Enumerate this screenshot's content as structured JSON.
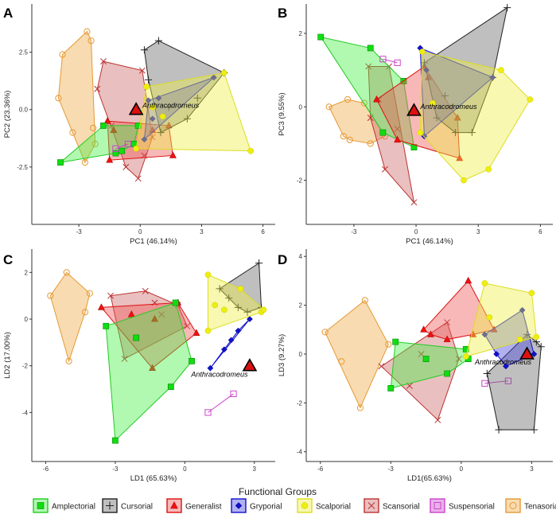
{
  "legend": {
    "title": "Functional Groups",
    "items": [
      {
        "key": "amplectorial",
        "label": "Amplectorial"
      },
      {
        "key": "cursorial",
        "label": "Cursorial"
      },
      {
        "key": "generalist",
        "label": "Generalist"
      },
      {
        "key": "gryporial",
        "label": "Gryporial"
      },
      {
        "key": "scalporial",
        "label": "Scalporial"
      },
      {
        "key": "scansorial",
        "label": "Scansorial"
      },
      {
        "key": "suspensorial",
        "label": "Suspensorial"
      },
      {
        "key": "tenasorial",
        "label": "Tenasorial"
      }
    ]
  },
  "groups": {
    "amplectorial": {
      "stroke": "#22cc22",
      "fill": "#44ee44",
      "marker": "square",
      "marker_fill": "#11dd11"
    },
    "cursorial": {
      "stroke": "#222222",
      "fill": "#666666",
      "marker": "plus",
      "marker_fill": "none"
    },
    "generalist": {
      "stroke": "#dd1111",
      "fill": "#ee5555",
      "marker": "triangle",
      "marker_fill": "#ee1111"
    },
    "gryporial": {
      "stroke": "#1111cc",
      "fill": "#4444dd",
      "marker": "diamond",
      "marker_fill": "#1111cc"
    },
    "scalporial": {
      "stroke": "#dddd22",
      "fill": "#eeee44",
      "marker": "circle",
      "marker_fill": "#eeee11"
    },
    "scansorial": {
      "stroke": "#bb3333",
      "fill": "#cc6666",
      "marker": "cross",
      "marker_fill": "none"
    },
    "suspensorial": {
      "stroke": "#cc44cc",
      "fill": "#cc44cc",
      "marker": "opensquare",
      "marker_fill": "none"
    },
    "tenasorial": {
      "stroke": "#e69933",
      "fill": "#eeaa44",
      "marker": "opencircle",
      "marker_fill": "none"
    }
  },
  "chart_data": [
    {
      "panel": "A",
      "type": "scatter",
      "xlabel": "PC1 (46.14%)",
      "ylabel": "PC2 (23.36%)",
      "xlim": [
        -5.3,
        6.6
      ],
      "ylim": [
        -5.0,
        4.6
      ],
      "xticks": [
        -3,
        0,
        3,
        6
      ],
      "yticks": [
        -2.5,
        0.0,
        2.5
      ],
      "highlight": {
        "label": "Anthracodromeus",
        "x": -0.2,
        "y": 0.0
      },
      "series": [
        {
          "group": "tenasorial",
          "points": [
            [
              -3.8,
              2.4
            ],
            [
              -2.6,
              3.4
            ],
            [
              -2.4,
              3.0
            ],
            [
              -2.3,
              -0.8
            ],
            [
              -2.2,
              -1.5
            ],
            [
              -2.7,
              -2.3
            ],
            [
              -3.3,
              -1.0
            ],
            [
              -4.0,
              0.5
            ]
          ]
        },
        {
          "group": "scansorial",
          "points": [
            [
              -1.8,
              2.1
            ],
            [
              -2.1,
              0.9
            ],
            [
              -0.7,
              -2.5
            ],
            [
              -0.1,
              -3.0
            ],
            [
              0.6,
              -1.2
            ],
            [
              0.1,
              1.7
            ],
            [
              -1.4,
              -0.7
            ],
            [
              0.2,
              -2.0
            ]
          ]
        },
        {
          "group": "generalist",
          "points": [
            [
              -1.6,
              -0.5
            ],
            [
              -1.5,
              -2.2
            ],
            [
              1.6,
              -2.0
            ],
            [
              1.4,
              -0.7
            ],
            [
              0.6,
              -0.9
            ],
            [
              -1.3,
              -0.9
            ]
          ]
        },
        {
          "group": "amplectorial",
          "points": [
            [
              -3.9,
              -2.3
            ],
            [
              -1.8,
              -0.7
            ],
            [
              -0.1,
              -0.7
            ],
            [
              -0.9,
              -1.8
            ],
            [
              -1.2,
              -1.9
            ],
            [
              -0.3,
              -1.5
            ]
          ]
        },
        {
          "group": "suspensorial",
          "points": [
            [
              -1.2,
              -1.7
            ],
            [
              -0.6,
              -1.5
            ]
          ]
        },
        {
          "group": "cursorial",
          "points": [
            [
              0.2,
              2.6
            ],
            [
              0.9,
              3.0
            ],
            [
              4.1,
              1.6
            ],
            [
              2.3,
              -0.4
            ],
            [
              1.0,
              -1.0
            ],
            [
              0.4,
              1.3
            ],
            [
              2.8,
              0.5
            ],
            [
              1.4,
              0.1
            ]
          ]
        },
        {
          "group": "gryporial",
          "points": [
            [
              0.2,
              -1.3
            ],
            [
              0.4,
              0.4
            ],
            [
              0.9,
              0.5
            ],
            [
              3.6,
              1.4
            ],
            [
              0.6,
              -0.4
            ]
          ]
        },
        {
          "group": "scalporial",
          "points": [
            [
              5.4,
              -1.8
            ],
            [
              4.1,
              1.6
            ],
            [
              0.3,
              1.0
            ],
            [
              -0.2,
              -1.7
            ],
            [
              0.6,
              0.1
            ],
            [
              1.1,
              -0.3
            ]
          ]
        }
      ]
    },
    {
      "panel": "B",
      "type": "scatter",
      "xlabel": "PC1 (46.14%)",
      "ylabel": "PC3 (9.55%)",
      "xlim": [
        -5.3,
        6.6
      ],
      "ylim": [
        -3.2,
        2.8
      ],
      "xticks": [
        -3,
        0,
        3,
        6
      ],
      "yticks": [
        -2,
        0,
        2
      ],
      "highlight": {
        "label": "Anthracodromeus",
        "x": -0.1,
        "y": -0.1
      },
      "series": [
        {
          "group": "tenasorial",
          "points": [
            [
              -4.2,
              0.0
            ],
            [
              -3.3,
              0.2
            ],
            [
              -1.5,
              -0.8
            ],
            [
              -2.2,
              -1.0
            ],
            [
              -3.2,
              -0.9
            ],
            [
              -3.5,
              -0.8
            ],
            [
              -2.5,
              0.1
            ]
          ]
        },
        {
          "group": "scansorial",
          "points": [
            [
              -2.3,
              1.1
            ],
            [
              -1.3,
              1.1
            ],
            [
              -0.1,
              -2.6
            ],
            [
              -1.5,
              -1.7
            ],
            [
              -1.8,
              0.2
            ],
            [
              -2.2,
              -0.3
            ],
            [
              -0.9,
              -0.6
            ]
          ]
        },
        {
          "group": "amplectorial",
          "points": [
            [
              -4.6,
              1.9
            ],
            [
              -2.2,
              1.6
            ],
            [
              -0.6,
              0.7
            ],
            [
              -0.1,
              -1.1
            ],
            [
              -1.6,
              -0.7
            ]
          ]
        },
        {
          "group": "generalist",
          "points": [
            [
              -1.9,
              0.2
            ],
            [
              0.4,
              1.1
            ],
            [
              0.6,
              0.8
            ],
            [
              2.0,
              -0.3
            ],
            [
              2.1,
              -1.4
            ],
            [
              -0.9,
              -0.9
            ]
          ]
        },
        {
          "group": "suspensorial",
          "points": [
            [
              -1.6,
              1.3
            ],
            [
              -0.9,
              1.2
            ]
          ]
        },
        {
          "group": "cursorial",
          "points": [
            [
              4.4,
              2.7
            ],
            [
              1.0,
              -0.3
            ],
            [
              1.9,
              -0.7
            ],
            [
              2.7,
              -0.7
            ],
            [
              0.4,
              1.2
            ],
            [
              3.7,
              0.8
            ],
            [
              1.4,
              0.3
            ]
          ]
        },
        {
          "group": "gryporial",
          "points": [
            [
              0.2,
              1.6
            ],
            [
              0.4,
              -0.8
            ],
            [
              3.7,
              0.8
            ],
            [
              0.5,
              1.0
            ]
          ]
        },
        {
          "group": "scalporial",
          "points": [
            [
              5.5,
              0.2
            ],
            [
              4.1,
              1.0
            ],
            [
              2.3,
              -2.0
            ],
            [
              3.5,
              -1.7
            ],
            [
              0.2,
              -0.7
            ],
            [
              0.3,
              1.5
            ],
            [
              0.8,
              0.1
            ]
          ]
        }
      ]
    },
    {
      "panel": "C",
      "type": "scatter",
      "xlabel": "LD1 (65.63%)",
      "ylabel": "LD2 (17.00%)",
      "xlim": [
        -6.6,
        3.9
      ],
      "ylim": [
        -6.1,
        3.0
      ],
      "xticks": [
        -6,
        -3,
        0,
        3
      ],
      "yticks": [
        -4,
        -2,
        0,
        2
      ],
      "highlight": {
        "label": "Anthracodromeus",
        "x": 2.8,
        "y": -2.0
      },
      "series": [
        {
          "group": "tenasorial",
          "points": [
            [
              -5.1,
              2.0
            ],
            [
              -4.1,
              1.1
            ],
            [
              -5.8,
              1.0
            ],
            [
              -5.0,
              -1.8
            ],
            [
              -4.3,
              0.3
            ]
          ]
        },
        {
          "group": "scansorial",
          "points": [
            [
              -3.2,
              1.0
            ],
            [
              -1.7,
              1.2
            ],
            [
              -0.3,
              0.6
            ],
            [
              0.1,
              -0.3
            ],
            [
              -2.6,
              -1.7
            ],
            [
              -1.0,
              0.2
            ],
            [
              -1.3,
              0.7
            ]
          ]
        },
        {
          "group": "generalist",
          "points": [
            [
              -3.6,
              0.5
            ],
            [
              -1.4,
              -2.1
            ],
            [
              -0.3,
              0.7
            ],
            [
              0.5,
              -0.6
            ],
            [
              -1.3,
              0.0
            ],
            [
              -2.3,
              0.2
            ]
          ]
        },
        {
          "group": "amplectorial",
          "points": [
            [
              -3.0,
              -5.2
            ],
            [
              -3.4,
              -0.3
            ],
            [
              -0.4,
              0.7
            ],
            [
              0.3,
              -1.8
            ],
            [
              -0.6,
              -2.9
            ],
            [
              -2.1,
              -0.8
            ]
          ]
        },
        {
          "group": "suspensorial",
          "points": [
            [
              1.0,
              -4.0
            ],
            [
              2.1,
              -3.2
            ]
          ]
        },
        {
          "group": "cursorial",
          "points": [
            [
              1.5,
              1.3
            ],
            [
              1.9,
              0.9
            ],
            [
              3.2,
              2.4
            ],
            [
              3.3,
              0.5
            ],
            [
              2.3,
              0.5
            ],
            [
              2.7,
              0.3
            ]
          ]
        },
        {
          "group": "gryporial",
          "points": [
            [
              1.1,
              -2.1
            ],
            [
              2.8,
              0.0
            ],
            [
              2.3,
              -0.5
            ],
            [
              2.0,
              -0.9
            ],
            [
              1.7,
              -1.3
            ]
          ]
        },
        {
          "group": "scalporial",
          "points": [
            [
              1.0,
              1.9
            ],
            [
              3.3,
              0.3
            ],
            [
              3.4,
              0.4
            ],
            [
              1.0,
              -0.5
            ],
            [
              1.7,
              0.4
            ],
            [
              2.4,
              1.3
            ],
            [
              1.3,
              0.6
            ]
          ]
        }
      ]
    },
    {
      "panel": "D",
      "type": "scatter",
      "xlabel": "LD1(65.63%)",
      "ylabel": "LD3 (9.27%)",
      "xlim": [
        -6.6,
        3.9
      ],
      "ylim": [
        -4.4,
        4.3
      ],
      "xticks": [
        -6,
        -3,
        0,
        3
      ],
      "yticks": [
        -4,
        -2,
        0,
        2,
        4
      ],
      "highlight": {
        "label": "Anthracodromeus",
        "x": 2.8,
        "y": 0.0
      },
      "series": [
        {
          "group": "tenasorial",
          "points": [
            [
              -5.8,
              0.9
            ],
            [
              -4.1,
              2.2
            ],
            [
              -3.1,
              0.4
            ],
            [
              -4.3,
              -2.2
            ],
            [
              -5.1,
              -0.3
            ]
          ]
        },
        {
          "group": "scansorial",
          "points": [
            [
              -3.4,
              -0.5
            ],
            [
              -0.6,
              1.3
            ],
            [
              -0.1,
              -0.2
            ],
            [
              -1.0,
              -2.7
            ],
            [
              -2.2,
              -1.3
            ],
            [
              -1.7,
              0.0
            ]
          ]
        },
        {
          "group": "generalist",
          "points": [
            [
              -1.6,
              1.0
            ],
            [
              0.3,
              3.0
            ],
            [
              1.4,
              1.0
            ],
            [
              -1.3,
              0.8
            ],
            [
              -0.6,
              0.6
            ],
            [
              0.5,
              0.8
            ]
          ]
        },
        {
          "group": "amplectorial",
          "points": [
            [
              -3.0,
              -1.4
            ],
            [
              -2.8,
              0.5
            ],
            [
              0.2,
              0.2
            ],
            [
              0.3,
              -0.2
            ],
            [
              -0.6,
              -0.8
            ],
            [
              -1.5,
              -0.2
            ]
          ]
        },
        {
          "group": "suspensorial",
          "points": [
            [
              1.0,
              -1.2
            ],
            [
              2.0,
              -1.1
            ]
          ]
        },
        {
          "group": "cursorial",
          "points": [
            [
              1.6,
              -3.1
            ],
            [
              3.1,
              -3.1
            ],
            [
              3.2,
              0.5
            ],
            [
              2.8,
              0.8
            ],
            [
              1.1,
              -0.8
            ],
            [
              3.4,
              0.3
            ]
          ]
        },
        {
          "group": "gryporial",
          "points": [
            [
              1.0,
              0.8
            ],
            [
              2.6,
              1.8
            ],
            [
              3.1,
              0.0
            ],
            [
              1.9,
              -0.5
            ],
            [
              1.5,
              0.0
            ]
          ]
        },
        {
          "group": "scalporial",
          "points": [
            [
              1.0,
              2.9
            ],
            [
              3.0,
              2.5
            ],
            [
              3.2,
              0.7
            ],
            [
              0.2,
              -0.1
            ],
            [
              1.2,
              1.5
            ],
            [
              2.5,
              0.6
            ]
          ]
        }
      ]
    }
  ]
}
